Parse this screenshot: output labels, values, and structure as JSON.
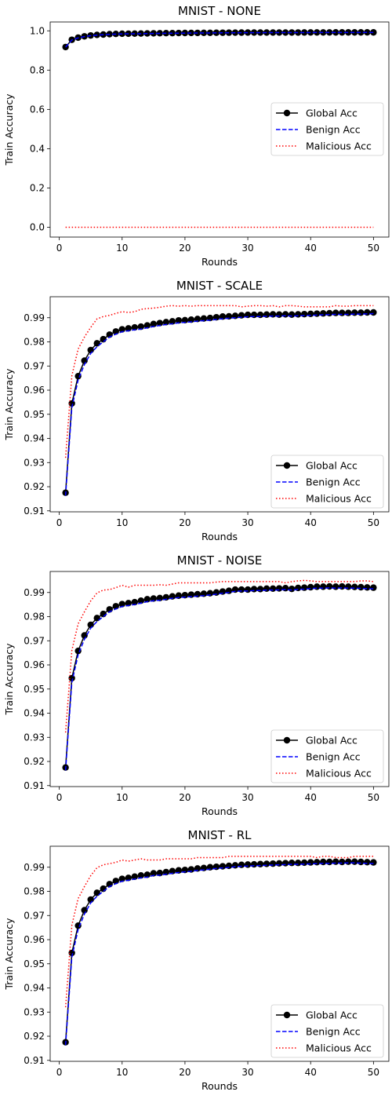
{
  "colors": {
    "global": "#000000",
    "benign": "#0000ff",
    "malicious": "#ff0000"
  },
  "chart_data": [
    {
      "type": "line",
      "title": "MNIST - NONE",
      "xlabel": "Rounds",
      "ylabel": "Train Accuracy",
      "xlim": [
        -1.45,
        52.45
      ],
      "ylim": [
        -0.05,
        1.045
      ],
      "xticks": [
        0,
        10,
        20,
        30,
        40,
        50
      ],
      "xtick_labels": [
        "0",
        "10",
        "20",
        "30",
        "40",
        "50"
      ],
      "yticks": [
        0.0,
        0.2,
        0.4,
        0.6,
        0.8,
        1.0
      ],
      "ytick_labels": [
        "0.0",
        "0.2",
        "0.4",
        "0.6",
        "0.8",
        "1.0"
      ],
      "legend_position": "center-right",
      "x": [
        1,
        2,
        3,
        4,
        5,
        6,
        7,
        8,
        9,
        10,
        11,
        12,
        13,
        14,
        15,
        16,
        17,
        18,
        19,
        20,
        21,
        22,
        23,
        24,
        25,
        26,
        27,
        28,
        29,
        30,
        31,
        32,
        33,
        34,
        35,
        36,
        37,
        38,
        39,
        40,
        41,
        42,
        43,
        44,
        45,
        46,
        47,
        48,
        49,
        50
      ],
      "series": [
        {
          "name": "Global Acc",
          "style": "marker-line",
          "values": [
            0.9175,
            0.9545,
            0.9655,
            0.972,
            0.9765,
            0.9793,
            0.981,
            0.983,
            0.9842,
            0.9852,
            0.9855,
            0.9858,
            0.9862,
            0.9868,
            0.9875,
            0.9878,
            0.9882,
            0.9884,
            0.9889,
            0.989,
            0.9892,
            0.9895,
            0.9897,
            0.9899,
            0.9902,
            0.9905,
            0.9906,
            0.9908,
            0.991,
            0.9912,
            0.9912,
            0.9912,
            0.9913,
            0.9914,
            0.9913,
            0.9914,
            0.9915,
            0.9915,
            0.9916,
            0.9917,
            0.9918,
            0.9918,
            0.9919,
            0.992,
            0.992,
            0.992,
            0.9921,
            0.9921,
            0.9922,
            0.992
          ]
        },
        {
          "name": "Benign Acc",
          "style": "dashed",
          "values": [
            0.9165,
            0.953,
            0.964,
            0.9705,
            0.9752,
            0.978,
            0.98,
            0.982,
            0.9832,
            0.9842,
            0.9846,
            0.9849,
            0.9853,
            0.9859,
            0.9866,
            0.9869,
            0.9874,
            0.9876,
            0.9881,
            0.9883,
            0.9885,
            0.9888,
            0.989,
            0.9892,
            0.9895,
            0.9898,
            0.99,
            0.9902,
            0.9904,
            0.9906,
            0.9907,
            0.9907,
            0.9908,
            0.9909,
            0.9909,
            0.991,
            0.991,
            0.9911,
            0.9912,
            0.9913,
            0.9914,
            0.9914,
            0.9915,
            0.9916,
            0.9916,
            0.9916,
            0.9917,
            0.9917,
            0.9918,
            0.9917
          ]
        },
        {
          "name": "Malicious Acc",
          "style": "dotted",
          "values": [
            0.0,
            0.0,
            0.0,
            0.0,
            0.0,
            0.0,
            0.0,
            0.0,
            0.0,
            0.0,
            0.0,
            0.0,
            0.0,
            0.0,
            0.0,
            0.0,
            0.0,
            0.0,
            0.0,
            0.0,
            0.0,
            0.0,
            0.0,
            0.0,
            0.0,
            0.0,
            0.0,
            0.0,
            0.0,
            0.0,
            0.0,
            0.0,
            0.0,
            0.0,
            0.0,
            0.0,
            0.0,
            0.0,
            0.0,
            0.0,
            0.0,
            0.0,
            0.0,
            0.0,
            0.0,
            0.0,
            0.0,
            0.0,
            0.0,
            0.0
          ]
        }
      ]
    },
    {
      "type": "line",
      "title": "MNIST - SCALE",
      "xlabel": "Rounds",
      "ylabel": "Train Accuracy",
      "xlim": [
        -1.45,
        52.45
      ],
      "ylim": [
        0.9096,
        0.9987
      ],
      "xticks": [
        0,
        10,
        20,
        30,
        40,
        50
      ],
      "xtick_labels": [
        "0",
        "10",
        "20",
        "30",
        "40",
        "50"
      ],
      "yticks": [
        0.91,
        0.92,
        0.93,
        0.94,
        0.95,
        0.96,
        0.97,
        0.98,
        0.99
      ],
      "ytick_labels": [
        "0.91",
        "0.92",
        "0.93",
        "0.94",
        "0.95",
        "0.96",
        "0.97",
        "0.98",
        "0.99"
      ],
      "legend_position": "lower-right",
      "x": [
        1,
        2,
        3,
        4,
        5,
        6,
        7,
        8,
        9,
        10,
        11,
        12,
        13,
        14,
        15,
        16,
        17,
        18,
        19,
        20,
        21,
        22,
        23,
        24,
        25,
        26,
        27,
        28,
        29,
        30,
        31,
        32,
        33,
        34,
        35,
        36,
        37,
        38,
        39,
        40,
        41,
        42,
        43,
        44,
        45,
        46,
        47,
        48,
        49,
        50
      ],
      "series": [
        {
          "name": "Global Acc",
          "style": "marker-line",
          "values": [
            0.9175,
            0.9545,
            0.9658,
            0.9722,
            0.9766,
            0.9794,
            0.9811,
            0.983,
            0.9843,
            0.9852,
            0.9856,
            0.986,
            0.9863,
            0.9868,
            0.9874,
            0.9878,
            0.9882,
            0.9885,
            0.9889,
            0.989,
            0.9892,
            0.9895,
            0.9897,
            0.9899,
            0.9902,
            0.9905,
            0.9906,
            0.9908,
            0.991,
            0.9912,
            0.9912,
            0.9912,
            0.9913,
            0.9914,
            0.9913,
            0.9914,
            0.9913,
            0.9914,
            0.9915,
            0.9916,
            0.9917,
            0.9918,
            0.9919,
            0.992,
            0.992,
            0.992,
            0.9921,
            0.9921,
            0.9922,
            0.9922
          ]
        },
        {
          "name": "Benign Acc",
          "style": "dashed",
          "values": [
            0.9163,
            0.9528,
            0.9642,
            0.9706,
            0.9752,
            0.978,
            0.98,
            0.982,
            0.9832,
            0.9842,
            0.9846,
            0.985,
            0.9853,
            0.9858,
            0.9864,
            0.9868,
            0.9872,
            0.9875,
            0.9879,
            0.9881,
            0.9883,
            0.9886,
            0.9888,
            0.989,
            0.9893,
            0.9896,
            0.9898,
            0.99,
            0.9902,
            0.9904,
            0.9905,
            0.9905,
            0.9906,
            0.9907,
            0.9907,
            0.9908,
            0.9907,
            0.9908,
            0.9909,
            0.991,
            0.9911,
            0.9912,
            0.9913,
            0.9914,
            0.9914,
            0.9914,
            0.9915,
            0.9915,
            0.9916,
            0.9917
          ]
        },
        {
          "name": "Malicious Acc",
          "style": "dotted",
          "values": [
            0.932,
            0.966,
            0.977,
            0.982,
            0.986,
            0.9895,
            0.9905,
            0.991,
            0.9918,
            0.9925,
            0.9922,
            0.9925,
            0.9935,
            0.9938,
            0.994,
            0.9943,
            0.9948,
            0.995,
            0.9948,
            0.995,
            0.9948,
            0.995,
            0.995,
            0.995,
            0.995,
            0.995,
            0.995,
            0.995,
            0.9945,
            0.9948,
            0.995,
            0.995,
            0.9948,
            0.995,
            0.9945,
            0.995,
            0.995,
            0.9948,
            0.9945,
            0.9945,
            0.9945,
            0.9945,
            0.9945,
            0.995,
            0.9948,
            0.9948,
            0.995,
            0.995,
            0.995,
            0.995
          ]
        }
      ]
    },
    {
      "type": "line",
      "title": "MNIST - NOISE",
      "xlabel": "Rounds",
      "ylabel": "Train Accuracy",
      "xlim": [
        -1.45,
        52.45
      ],
      "ylim": [
        0.9096,
        0.9987
      ],
      "xticks": [
        0,
        10,
        20,
        30,
        40,
        50
      ],
      "xtick_labels": [
        "0",
        "10",
        "20",
        "30",
        "40",
        "50"
      ],
      "yticks": [
        0.91,
        0.92,
        0.93,
        0.94,
        0.95,
        0.96,
        0.97,
        0.98,
        0.99
      ],
      "ytick_labels": [
        "0.91",
        "0.92",
        "0.93",
        "0.94",
        "0.95",
        "0.96",
        "0.97",
        "0.98",
        "0.99"
      ],
      "legend_position": "lower-right",
      "x": [
        1,
        2,
        3,
        4,
        5,
        6,
        7,
        8,
        9,
        10,
        11,
        12,
        13,
        14,
        15,
        16,
        17,
        18,
        19,
        20,
        21,
        22,
        23,
        24,
        25,
        26,
        27,
        28,
        29,
        30,
        31,
        32,
        33,
        34,
        35,
        36,
        37,
        38,
        39,
        40,
        41,
        42,
        43,
        44,
        45,
        46,
        47,
        48,
        49,
        50
      ],
      "series": [
        {
          "name": "Global Acc",
          "style": "marker-line",
          "values": [
            0.9175,
            0.9545,
            0.9658,
            0.9722,
            0.9766,
            0.9794,
            0.9811,
            0.983,
            0.9843,
            0.9852,
            0.9856,
            0.986,
            0.9866,
            0.9872,
            0.9875,
            0.9877,
            0.988,
            0.9884,
            0.9887,
            0.9889,
            0.9891,
            0.9893,
            0.9895,
            0.9897,
            0.99,
            0.9904,
            0.9907,
            0.9912,
            0.9912,
            0.9912,
            0.9914,
            0.9914,
            0.9916,
            0.9916,
            0.9917,
            0.9918,
            0.9915,
            0.9919,
            0.992,
            0.9922,
            0.9924,
            0.9924,
            0.9925,
            0.9924,
            0.9925,
            0.9924,
            0.9923,
            0.9922,
            0.9921,
            0.992
          ]
        },
        {
          "name": "Benign Acc",
          "style": "dashed",
          "values": [
            0.9163,
            0.9528,
            0.9642,
            0.9706,
            0.9752,
            0.978,
            0.98,
            0.982,
            0.9832,
            0.9842,
            0.9846,
            0.985,
            0.9856,
            0.9862,
            0.9866,
            0.9868,
            0.9872,
            0.9876,
            0.9879,
            0.9881,
            0.9883,
            0.9885,
            0.9887,
            0.989,
            0.9893,
            0.9897,
            0.99,
            0.9905,
            0.9906,
            0.9906,
            0.9908,
            0.9908,
            0.991,
            0.991,
            0.9911,
            0.9912,
            0.991,
            0.9913,
            0.9914,
            0.9916,
            0.9918,
            0.9918,
            0.9919,
            0.9918,
            0.9919,
            0.9918,
            0.9918,
            0.9917,
            0.9916,
            0.9915
          ]
        },
        {
          "name": "Malicious Acc",
          "style": "dotted",
          "values": [
            0.932,
            0.966,
            0.977,
            0.982,
            0.9865,
            0.9898,
            0.991,
            0.9912,
            0.992,
            0.993,
            0.9922,
            0.993,
            0.993,
            0.993,
            0.993,
            0.9932,
            0.993,
            0.9935,
            0.994,
            0.994,
            0.994,
            0.994,
            0.994,
            0.994,
            0.9943,
            0.9945,
            0.9945,
            0.9945,
            0.9945,
            0.9945,
            0.9945,
            0.9945,
            0.9945,
            0.9945,
            0.9945,
            0.994,
            0.9945,
            0.9948,
            0.995,
            0.9948,
            0.9945,
            0.9945,
            0.9945,
            0.9945,
            0.9945,
            0.9945,
            0.9945,
            0.9948,
            0.9948,
            0.9945
          ]
        }
      ]
    },
    {
      "type": "line",
      "title": "MNIST - RL",
      "xlabel": "Rounds",
      "ylabel": "Train Accuracy",
      "xlim": [
        -1.45,
        52.45
      ],
      "ylim": [
        0.9096,
        0.9987
      ],
      "xticks": [
        0,
        10,
        20,
        30,
        40,
        50
      ],
      "xtick_labels": [
        "0",
        "10",
        "20",
        "30",
        "40",
        "50"
      ],
      "yticks": [
        0.91,
        0.92,
        0.93,
        0.94,
        0.95,
        0.96,
        0.97,
        0.98,
        0.99
      ],
      "ytick_labels": [
        "0.91",
        "0.92",
        "0.93",
        "0.94",
        "0.95",
        "0.96",
        "0.97",
        "0.98",
        "0.99"
      ],
      "legend_position": "lower-right",
      "x": [
        1,
        2,
        3,
        4,
        5,
        6,
        7,
        8,
        9,
        10,
        11,
        12,
        13,
        14,
        15,
        16,
        17,
        18,
        19,
        20,
        21,
        22,
        23,
        24,
        25,
        26,
        27,
        28,
        29,
        30,
        31,
        32,
        33,
        34,
        35,
        36,
        37,
        38,
        39,
        40,
        41,
        42,
        43,
        44,
        45,
        46,
        47,
        48,
        49,
        50
      ],
      "series": [
        {
          "name": "Global Acc",
          "style": "marker-line",
          "values": [
            0.9175,
            0.9545,
            0.9658,
            0.9722,
            0.9766,
            0.9794,
            0.9811,
            0.983,
            0.9843,
            0.9852,
            0.9856,
            0.9861,
            0.9866,
            0.9869,
            0.9875,
            0.9876,
            0.988,
            0.9884,
            0.9887,
            0.9889,
            0.9891,
            0.9895,
            0.9897,
            0.99,
            0.9902,
            0.9904,
            0.9906,
            0.9908,
            0.991,
            0.9911,
            0.9912,
            0.9913,
            0.9914,
            0.9915,
            0.9916,
            0.9917,
            0.9918,
            0.9918,
            0.9919,
            0.992,
            0.9921,
            0.9922,
            0.9922,
            0.9923,
            0.9922,
            0.9923,
            0.9923,
            0.9922,
            0.9921,
            0.992
          ]
        },
        {
          "name": "Benign Acc",
          "style": "dashed",
          "values": [
            0.9163,
            0.9528,
            0.9642,
            0.9706,
            0.9752,
            0.978,
            0.98,
            0.982,
            0.9832,
            0.9842,
            0.9846,
            0.9851,
            0.9856,
            0.9859,
            0.9866,
            0.9867,
            0.9871,
            0.9875,
            0.9878,
            0.9881,
            0.9883,
            0.9887,
            0.9889,
            0.9892,
            0.9895,
            0.9897,
            0.9899,
            0.9902,
            0.9904,
            0.9905,
            0.9906,
            0.9907,
            0.9908,
            0.9909,
            0.991,
            0.9911,
            0.9912,
            0.9912,
            0.9913,
            0.9914,
            0.9915,
            0.9916,
            0.9916,
            0.9917,
            0.9917,
            0.9918,
            0.9918,
            0.9917,
            0.9916,
            0.9915
          ]
        },
        {
          "name": "Malicious Acc",
          "style": "dotted",
          "values": [
            0.932,
            0.966,
            0.977,
            0.982,
            0.9865,
            0.9898,
            0.991,
            0.9915,
            0.992,
            0.993,
            0.9925,
            0.993,
            0.9935,
            0.993,
            0.993,
            0.993,
            0.9935,
            0.9935,
            0.9935,
            0.9935,
            0.9935,
            0.994,
            0.994,
            0.994,
            0.994,
            0.994,
            0.9945,
            0.9945,
            0.9945,
            0.9945,
            0.9945,
            0.9945,
            0.9945,
            0.9945,
            0.9945,
            0.9945,
            0.9945,
            0.9945,
            0.9945,
            0.9945,
            0.994,
            0.9945,
            0.9945,
            0.994,
            0.994,
            0.994,
            0.9945,
            0.9945,
            0.9945,
            0.9945
          ]
        }
      ]
    }
  ]
}
